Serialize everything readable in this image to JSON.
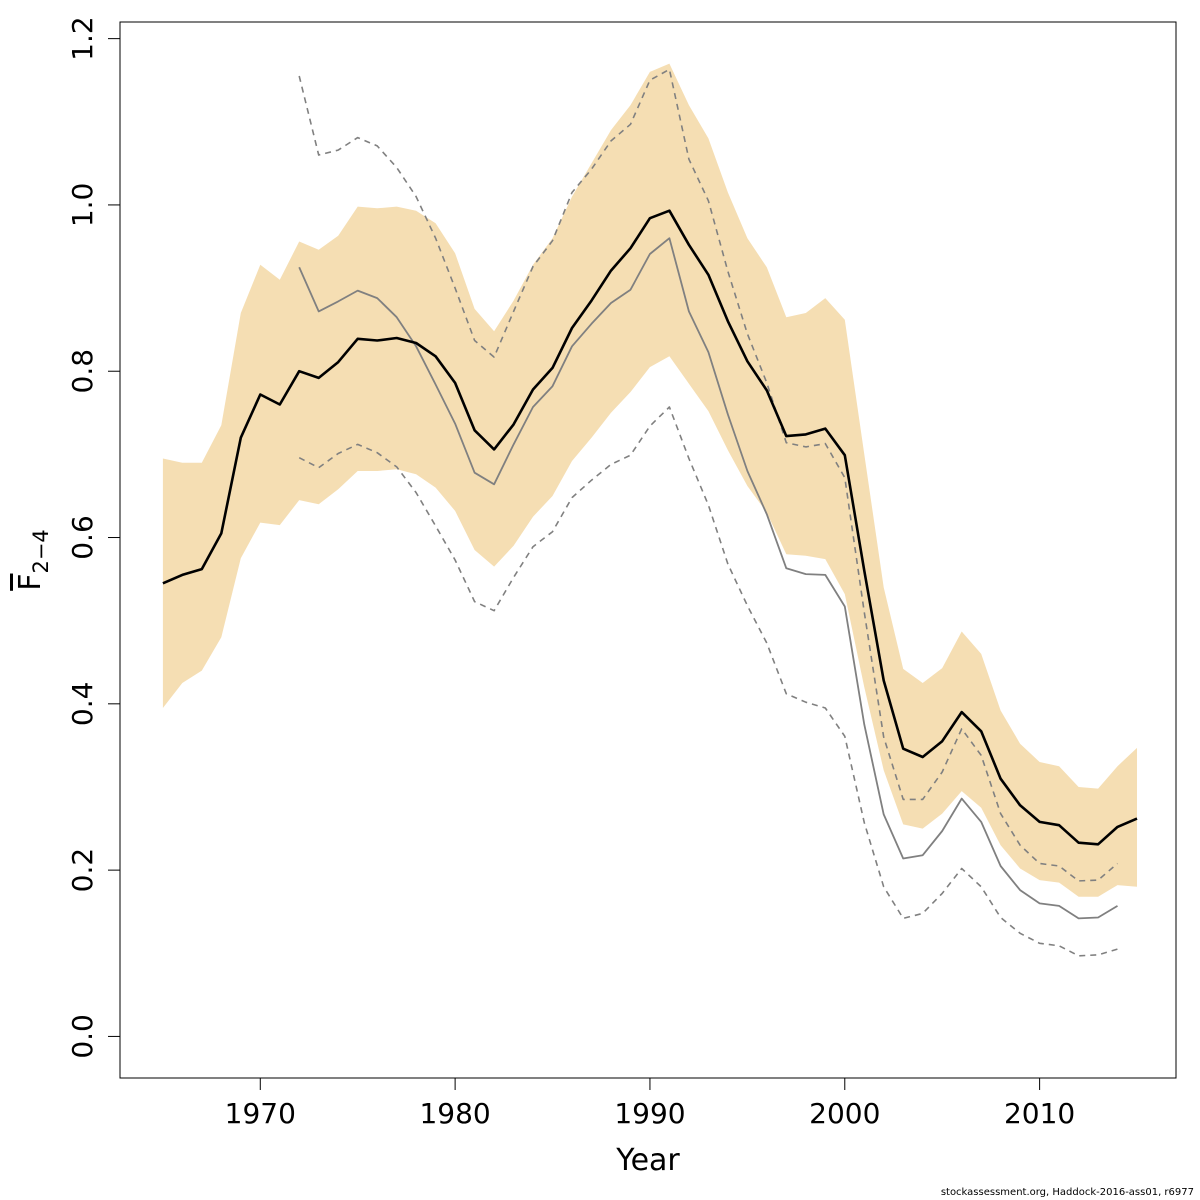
{
  "credit": "stockassessment.org, Haddock-2016-ass01, r6977",
  "colors": {
    "band": "#f5deb3",
    "main": "#000000",
    "retro": "#808080"
  },
  "chart_data": {
    "type": "line",
    "xlabel": "Year",
    "ylabel": {
      "base": "F",
      "subscript": "2−4"
    },
    "xlim": [
      1962.8,
      2017.0
    ],
    "ylim": [
      -0.05,
      1.22
    ],
    "xticks": [
      1970,
      1980,
      1990,
      2000,
      2010
    ],
    "yticks": [
      0.0,
      0.2,
      0.4,
      0.6,
      0.8,
      1.0,
      1.2
    ],
    "ytick_labels": [
      "0.0",
      "0.2",
      "0.4",
      "0.6",
      "0.8",
      "1.0",
      "1.2"
    ],
    "band": {
      "x": [
        1965,
        1966,
        1967,
        1968,
        1969,
        1970,
        1971,
        1972,
        1973,
        1974,
        1975,
        1976,
        1977,
        1978,
        1979,
        1980,
        1981,
        1982,
        1983,
        1984,
        1985,
        1986,
        1987,
        1988,
        1989,
        1990,
        1991,
        1992,
        1993,
        1994,
        1995,
        1996,
        1997,
        1998,
        1999,
        2000,
        2001,
        2002,
        2003,
        2004,
        2005,
        2006,
        2007,
        2008,
        2009,
        2010,
        2011,
        2012,
        2013,
        2014,
        2015
      ],
      "upper": [
        0.695,
        0.69,
        0.69,
        0.735,
        0.87,
        0.928,
        0.91,
        0.956,
        0.946,
        0.963,
        0.998,
        0.996,
        0.998,
        0.993,
        0.978,
        0.942,
        0.875,
        0.848,
        0.885,
        0.928,
        0.96,
        1.01,
        1.05,
        1.09,
        1.12,
        1.16,
        1.17,
        1.12,
        1.08,
        1.015,
        0.96,
        0.925,
        0.865,
        0.87,
        0.888,
        0.862,
        0.7,
        0.54,
        0.442,
        0.425,
        0.443,
        0.487,
        0.46,
        0.392,
        0.352,
        0.33,
        0.325,
        0.3,
        0.298,
        0.325,
        0.347
      ],
      "lower": [
        0.395,
        0.425,
        0.44,
        0.48,
        0.575,
        0.618,
        0.615,
        0.645,
        0.64,
        0.658,
        0.68,
        0.68,
        0.682,
        0.676,
        0.66,
        0.632,
        0.585,
        0.565,
        0.59,
        0.625,
        0.65,
        0.692,
        0.72,
        0.75,
        0.775,
        0.805,
        0.818,
        0.785,
        0.752,
        0.705,
        0.662,
        0.63,
        0.58,
        0.578,
        0.574,
        0.532,
        0.42,
        0.32,
        0.255,
        0.25,
        0.268,
        0.295,
        0.275,
        0.23,
        0.202,
        0.188,
        0.185,
        0.168,
        0.168,
        0.182,
        0.18
      ]
    },
    "series": [
      {
        "x": [
          1965,
          1966,
          1967,
          1968,
          1969,
          1970,
          1971,
          1972,
          1973,
          1974,
          1975,
          1976,
          1977,
          1978,
          1979,
          1980,
          1981,
          1982,
          1983,
          1984,
          1985,
          1986,
          1987,
          1988,
          1989,
          1990,
          1991,
          1992,
          1993,
          1994,
          1995,
          1996,
          1997,
          1998,
          1999,
          2000,
          2001,
          2002,
          2003,
          2004,
          2005,
          2006,
          2007,
          2008,
          2009,
          2010,
          2011,
          2012,
          2013,
          2014,
          2015
        ],
        "values": [
          0.545,
          0.555,
          0.562,
          0.605,
          0.72,
          0.772,
          0.76,
          0.8,
          0.792,
          0.811,
          0.839,
          0.837,
          0.84,
          0.834,
          0.818,
          0.786,
          0.729,
          0.706,
          0.736,
          0.778,
          0.804,
          0.852,
          0.885,
          0.921,
          0.948,
          0.984,
          0.993,
          0.952,
          0.916,
          0.86,
          0.812,
          0.777,
          0.722,
          0.724,
          0.731,
          0.699,
          0.56,
          0.428,
          0.346,
          0.336,
          0.355,
          0.39,
          0.367,
          0.31,
          0.278,
          0.258,
          0.254,
          0.233,
          0.231,
          0.252,
          0.262
        ],
        "color": "#000000",
        "width": 2.6,
        "dash": ""
      },
      {
        "x": [
          1972,
          1973,
          1974,
          1975,
          1976,
          1977,
          1978,
          1979,
          1980,
          1981,
          1982,
          1983,
          1984,
          1985,
          1986,
          1987,
          1988,
          1989,
          1990,
          1991,
          1992,
          1993,
          1994,
          1995,
          1996,
          1997,
          1998,
          1999,
          2000,
          2001,
          2002,
          2003,
          2004,
          2005,
          2006,
          2007,
          2008,
          2009,
          2010,
          2011,
          2012,
          2013,
          2014
        ],
        "values": [
          0.925,
          0.872,
          0.884,
          0.897,
          0.888,
          0.865,
          0.83,
          0.784,
          0.737,
          0.678,
          0.664,
          0.712,
          0.757,
          0.782,
          0.83,
          0.857,
          0.882,
          0.898,
          0.941,
          0.96,
          0.872,
          0.823,
          0.748,
          0.68,
          0.628,
          0.563,
          0.556,
          0.555,
          0.517,
          0.375,
          0.267,
          0.214,
          0.218,
          0.247,
          0.286,
          0.258,
          0.205,
          0.176,
          0.16,
          0.157,
          0.142,
          0.143,
          0.157
        ],
        "color": "#808080",
        "width": 1.8,
        "dash": ""
      },
      {
        "x": [
          1972,
          1973,
          1974,
          1975,
          1976,
          1977,
          1978,
          1979,
          1980,
          1981,
          1982,
          1983,
          1984,
          1985,
          1986,
          1987,
          1988,
          1989,
          1990,
          1991,
          1992,
          1993,
          1994,
          1995,
          1996,
          1997,
          1998,
          1999,
          2000,
          2001,
          2002,
          2003,
          2004,
          2005,
          2006,
          2007,
          2008,
          2009,
          2010,
          2011,
          2012,
          2013,
          2014
        ],
        "values": [
          1.155,
          1.06,
          1.066,
          1.081,
          1.071,
          1.045,
          1.01,
          0.96,
          0.9,
          0.837,
          0.817,
          0.872,
          0.926,
          0.957,
          1.015,
          1.043,
          1.077,
          1.097,
          1.15,
          1.163,
          1.055,
          1.005,
          0.92,
          0.845,
          0.786,
          0.714,
          0.709,
          0.713,
          0.672,
          0.51,
          0.36,
          0.285,
          0.285,
          0.318,
          0.37,
          0.338,
          0.268,
          0.23,
          0.208,
          0.205,
          0.187,
          0.188,
          0.208
        ],
        "color": "#808080",
        "width": 1.6,
        "dash": "6,5"
      },
      {
        "x": [
          1972,
          1973,
          1974,
          1975,
          1976,
          1977,
          1978,
          1979,
          1980,
          1981,
          1982,
          1983,
          1984,
          1985,
          1986,
          1987,
          1988,
          1989,
          1990,
          1991,
          1992,
          1993,
          1994,
          1995,
          1996,
          1997,
          1998,
          1999,
          2000,
          2001,
          2002,
          2003,
          2004,
          2005,
          2006,
          2007,
          2008,
          2009,
          2010,
          2011,
          2012,
          2013,
          2014
        ],
        "values": [
          0.696,
          0.684,
          0.701,
          0.712,
          0.702,
          0.685,
          0.654,
          0.614,
          0.573,
          0.523,
          0.512,
          0.552,
          0.589,
          0.607,
          0.648,
          0.669,
          0.688,
          0.699,
          0.734,
          0.757,
          0.695,
          0.639,
          0.568,
          0.518,
          0.473,
          0.412,
          0.402,
          0.395,
          0.361,
          0.257,
          0.18,
          0.142,
          0.148,
          0.172,
          0.202,
          0.18,
          0.143,
          0.124,
          0.112,
          0.109,
          0.097,
          0.098,
          0.105
        ],
        "color": "#808080",
        "width": 1.6,
        "dash": "6,5"
      }
    ]
  }
}
